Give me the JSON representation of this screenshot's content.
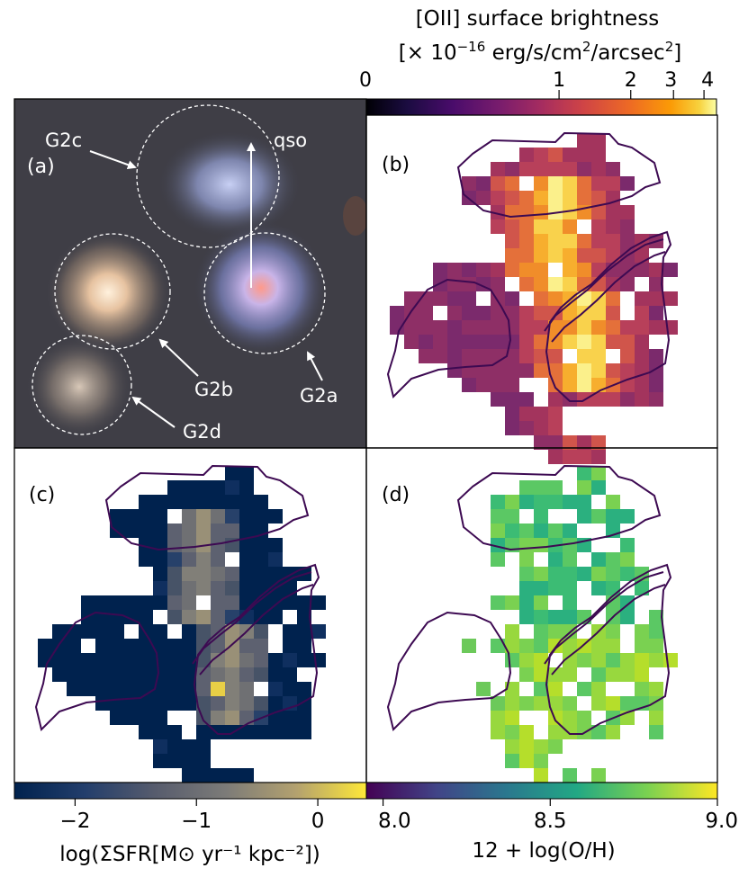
{
  "top_colorbar": {
    "title_line1": "[OII] surface brightness",
    "title_line2_prefix": "[× 10",
    "title_line2_exp": "−16",
    "title_line2_mid": " erg/s/cm",
    "title_line2_sq": "2",
    "title_line2_unit": "/arcsec",
    "title_line2_sq2": "2",
    "title_line2_end": "]",
    "tick_labels": [
      "0",
      "1",
      "2",
      "3",
      "4"
    ],
    "colormap": "inferno"
  },
  "panels": {
    "a": {
      "label": "(a)",
      "objects": [
        "G2c",
        "qso",
        "G2b",
        "G2a",
        "G2d"
      ]
    },
    "b": {
      "label": "(b)"
    },
    "c": {
      "label": "(c)"
    },
    "d": {
      "label": "(d)"
    }
  },
  "sfr_colorbar": {
    "label": "log(ΣSFR[M⊙ yr⁻¹ kpc⁻²])",
    "tick_labels": [
      "−2",
      "−1",
      "0"
    ],
    "colormap": "cividis"
  },
  "oh_colorbar": {
    "label": "12 + log(O/H)",
    "tick_labels": [
      "8.0",
      "8.5",
      "9.0"
    ],
    "colormap": "viridis"
  },
  "chart_data": [
    {
      "type": "colorbar",
      "title": "[OII] surface brightness [× 10^-16 erg/s/cm2/arcsec2]",
      "scale": "asinh-like",
      "ticks": [
        0,
        1,
        2,
        3,
        4
      ],
      "range": [
        0,
        4.5
      ]
    },
    {
      "type": "colorbar",
      "label": "log(ΣSFR[M⊙ yr^-1 kpc^-2])",
      "ticks": [
        -2,
        -1,
        0
      ],
      "range": [
        -2.5,
        0.4
      ]
    },
    {
      "type": "colorbar",
      "label": "12 + log(O/H)",
      "ticks": [
        8.0,
        8.5,
        9.0
      ],
      "range": [
        7.95,
        9.0
      ]
    },
    {
      "type": "heatmap",
      "panel": "(b)",
      "quantity": "[OII] surface brightness",
      "grid_size": [
        24,
        24
      ],
      "value_range": [
        0.2,
        4.0
      ]
    },
    {
      "type": "heatmap",
      "panel": "(c)",
      "quantity": "log(ΣSFR)",
      "grid_size": [
        24,
        24
      ],
      "value_range": [
        -2.5,
        0
      ]
    },
    {
      "type": "heatmap",
      "panel": "(d)",
      "quantity": "12 + log(O/H)",
      "grid_size": [
        24,
        24
      ],
      "value_range": [
        8.6,
        8.9
      ]
    }
  ]
}
